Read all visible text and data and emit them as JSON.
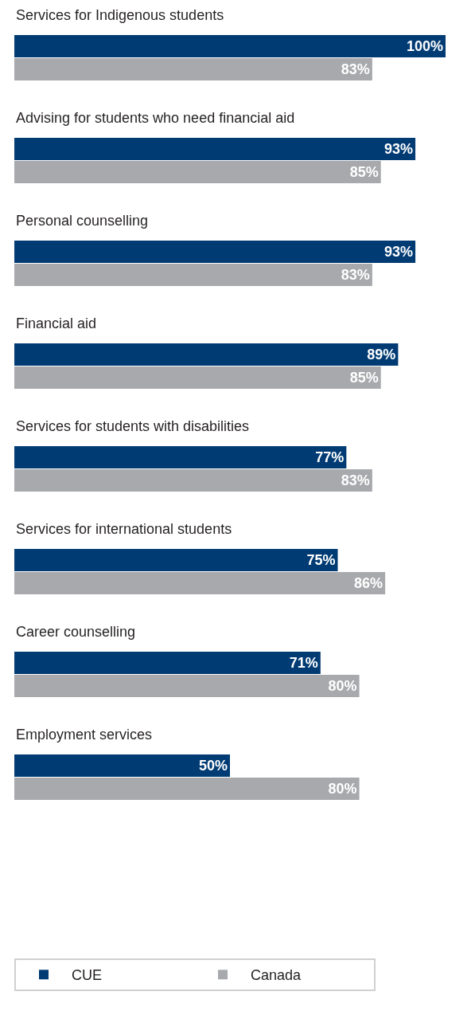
{
  "chart_data": {
    "type": "bar",
    "orientation": "horizontal",
    "categories": [
      "Services for Indigenous students",
      "Advising for students who need financial aid",
      "Personal counselling",
      "Financial aid",
      "Services for students with disabilities",
      "Services for international students",
      "Career counselling",
      "Employment services"
    ],
    "series": [
      {
        "name": "CUE",
        "color": "#003b73",
        "values": [
          100,
          93,
          93,
          89,
          77,
          75,
          71,
          50
        ],
        "value_labels": [
          "100%",
          "93%",
          "93%",
          "89%",
          "77%",
          "75%",
          "71%",
          "50%"
        ]
      },
      {
        "name": "Canada",
        "color": "#a7a9ac",
        "values": [
          83,
          85,
          83,
          85,
          83,
          86,
          80,
          80
        ],
        "value_labels": [
          "83%",
          "85%",
          "83%",
          "85%",
          "83%",
          "86%",
          "80%",
          "80%"
        ]
      }
    ],
    "xlim": [
      0,
      100
    ],
    "tick_labels": "y",
    "grid": false,
    "legend": "bottom left"
  }
}
